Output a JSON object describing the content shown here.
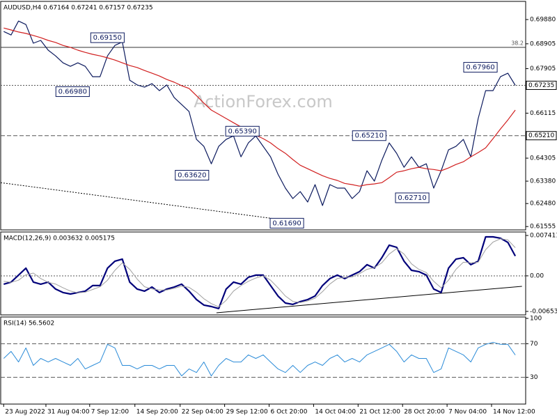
{
  "chart_data": [
    {
      "type": "line",
      "title": "AUDUSD,H4  0.67164 0.67241 0.67157 0.67235",
      "watermark": "ActionForex.com",
      "xlim": [
        -0.4,
        70.4
      ],
      "ylim": [
        0.6142,
        0.7061
      ],
      "yticks": [
        {
          "value": 0.6988,
          "label": "0.69880"
        },
        0.68905,
        0.67905,
        0.66115,
        0.64305,
        {
          "value": 0.6338,
          "label": "0.63380"
        },
        {
          "value": 0.6248,
          "label": "0.62480"
        },
        0.61555
      ],
      "series": [
        {
          "color": "#0c1a5e",
          "width": 1.2,
          "values": [
            0.694,
            0.6926,
            0.6982,
            0.6968,
            0.6893,
            0.6904,
            0.6865,
            0.6842,
            0.6814,
            0.68,
            0.6814,
            0.68,
            0.6758,
            0.6758,
            0.6842,
            0.6884,
            0.6898,
            0.6744,
            0.6725,
            0.6716,
            0.673,
            0.6702,
            0.6725,
            0.6674,
            0.6646,
            0.6618,
            0.6506,
            0.6478,
            0.6408,
            0.6478,
            0.6506,
            0.652,
            0.6436,
            0.6492,
            0.652,
            0.6478,
            0.6436,
            0.6366,
            0.631,
            0.6268,
            0.6296,
            0.6254,
            0.6324,
            0.624,
            0.6324,
            0.631,
            0.631,
            0.6268,
            0.6296,
            0.638,
            0.6338,
            0.6422,
            0.6492,
            0.645,
            0.6394,
            0.6436,
            0.6394,
            0.6408,
            0.631,
            0.638,
            0.6464,
            0.6478,
            0.6506,
            0.6436,
            0.659,
            0.6702,
            0.6702,
            0.6758,
            0.6772,
            0.67235
          ]
        },
        {
          "color": "#d11f1f",
          "width": 1.2,
          "values": [
            0.6954,
            0.6946,
            0.6938,
            0.6932,
            0.6924,
            0.6915,
            0.6904,
            0.6896,
            0.6884,
            0.6876,
            0.6865,
            0.6856,
            0.6848,
            0.6842,
            0.6834,
            0.6825,
            0.6814,
            0.6803,
            0.6795,
            0.6783,
            0.6772,
            0.6761,
            0.6747,
            0.6736,
            0.6722,
            0.6711,
            0.6682,
            0.6652,
            0.6624,
            0.6607,
            0.659,
            0.6573,
            0.6556,
            0.654,
            0.6523,
            0.6509,
            0.6492,
            0.6469,
            0.645,
            0.6425,
            0.6402,
            0.6388,
            0.6374,
            0.636,
            0.6349,
            0.6341,
            0.6329,
            0.6324,
            0.6318,
            0.6324,
            0.6327,
            0.6332,
            0.6352,
            0.6374,
            0.638,
            0.6388,
            0.6394,
            0.6388,
            0.6385,
            0.638,
            0.6391,
            0.6405,
            0.6416,
            0.6436,
            0.6453,
            0.6472,
            0.6509,
            0.6548,
            0.6584,
            0.6624
          ]
        }
      ],
      "hlines": [
        {
          "value": 0.6876,
          "label": "38.2",
          "style": "solid",
          "label_position": "inside"
        },
        {
          "value": 0.67235,
          "label": "0.67235",
          "style": "dotted",
          "label_position": "axis"
        },
        {
          "value": 0.6521,
          "label": "0.65210",
          "style": "dashed",
          "label_position": "axis"
        }
      ],
      "trendline": {
        "x": [
          -0.4,
          38
        ],
        "values": [
          0.6332,
          0.6181
        ],
        "style": "dotted",
        "color": "#000000"
      },
      "annotations": [
        {
          "x": 14,
          "value": 0.6915,
          "label": "0.69150"
        },
        {
          "x": 9.3,
          "value": 0.6698,
          "label": "0.66980"
        },
        {
          "x": 25.4,
          "value": 0.6362,
          "label": "0.63620"
        },
        {
          "x": 32.2,
          "value": 0.6539,
          "label": "0.65390"
        },
        {
          "x": 38.2,
          "value": 0.6169,
          "label": "0.61690"
        },
        {
          "x": 49.3,
          "value": 0.6521,
          "label": "0.65210"
        },
        {
          "x": 55.1,
          "value": 0.6271,
          "label": "0.62710"
        },
        {
          "x": 64.3,
          "value": 0.6796,
          "label": "0.67960"
        }
      ]
    },
    {
      "type": "line",
      "title": "MACD(12,26,9) 0.003632 0.005175",
      "xlim": [
        -0.4,
        70.4
      ],
      "ylim": [
        -0.00717,
        0.00805
      ],
      "yticks": [
        0.007411,
        {
          "value": 0,
          "label": "0.00"
        },
        -0.006532
      ],
      "series": [
        {
          "color": "#00007a",
          "width": 2.2,
          "values": [
            -0.00153,
            -0.00115,
            0.00013,
            0.00141,
            -0.00115,
            -0.00153,
            -0.00115,
            -0.00243,
            -0.00307,
            -0.00333,
            -0.00307,
            -0.00281,
            -0.00179,
            -0.00179,
            0.00141,
            0.00269,
            0.00307,
            -0.00115,
            -0.00243,
            -0.00281,
            -0.00205,
            -0.00307,
            -0.00243,
            -0.00205,
            -0.00153,
            -0.00281,
            -0.00435,
            -0.00537,
            -0.00563,
            -0.00601,
            -0.00243,
            -0.00115,
            -0.00153,
            -0.00026,
            0.00013,
            0.00013,
            -0.00179,
            -0.00371,
            -0.00499,
            -0.00524,
            -0.00473,
            -0.00435,
            -0.00371,
            -0.00179,
            -0.00051,
            0.00013,
            -0.00051,
            0.00013,
            0.00077,
            0.00205,
            0.00141,
            0.00333,
            0.00563,
            0.00524,
            0.00269,
            0.00102,
            0.00077,
            0.00013,
            -0.00243,
            -0.00307,
            0.00141,
            0.00307,
            0.00333,
            0.00205,
            0.00269,
            0.00716,
            0.00716,
            0.00691,
            0.00614,
            0.003632
          ]
        },
        {
          "color": "#a0a0a0",
          "width": 1,
          "values": [
            -0.001,
            -0.0012,
            -0.0008,
            0.0002,
            0.0005,
            -0.0005,
            -0.0012,
            -0.0015,
            -0.0022,
            -0.0028,
            -0.0031,
            -0.003,
            -0.0025,
            -0.002,
            -0.0008,
            0.001,
            0.0024,
            0.0012,
            -0.0006,
            -0.002,
            -0.0024,
            -0.0026,
            -0.0026,
            -0.0023,
            -0.0019,
            -0.0021,
            -0.003,
            -0.0042,
            -0.0051,
            -0.0057,
            -0.0045,
            -0.0028,
            -0.0018,
            -0.001,
            -0.0004,
            0.0,
            -0.0008,
            -0.0022,
            -0.0037,
            -0.0047,
            -0.0049,
            -0.0046,
            -0.0041,
            -0.0029,
            -0.0015,
            -0.0005,
            -0.0003,
            -0.0002,
            0.0004,
            0.0012,
            0.0015,
            0.0024,
            0.004,
            0.005,
            0.004,
            0.0022,
            0.0012,
            0.0006,
            -0.001,
            -0.0022,
            -0.0008,
            0.0012,
            0.0025,
            0.0024,
            0.0025,
            0.0048,
            0.0062,
            0.0068,
            0.0066,
            0.005175
          ]
        }
      ],
      "hlines": [
        {
          "value": 0,
          "style": "dotted"
        }
      ],
      "trendline": {
        "x": [
          28.7,
          69.9
        ],
        "values": [
          -0.00678,
          -0.00192
        ],
        "style": "solid",
        "color": "#000000"
      }
    },
    {
      "type": "line",
      "title": "RSI(14) 56.5602",
      "xlim": [
        -0.4,
        70.4
      ],
      "ylim": [
        -1.7,
        101.7
      ],
      "yticks": [
        100,
        70,
        30
      ],
      "series": [
        {
          "color": "#2a8bd8",
          "width": 1,
          "values": [
            52.5,
            60.8,
            48.3,
            65.0,
            44.2,
            52.5,
            48.3,
            52.5,
            48.3,
            44.2,
            52.5,
            40.0,
            44.2,
            48.3,
            69.2,
            65.0,
            44.2,
            44.2,
            40.0,
            44.2,
            44.2,
            40.0,
            44.2,
            44.2,
            31.7,
            40.0,
            35.8,
            48.3,
            31.7,
            44.2,
            52.5,
            48.3,
            48.3,
            56.7,
            52.5,
            56.7,
            48.3,
            40.0,
            35.8,
            44.2,
            35.8,
            44.2,
            48.3,
            44.2,
            52.5,
            56.7,
            48.3,
            52.5,
            48.3,
            56.7,
            60.8,
            65.0,
            69.2,
            60.8,
            48.3,
            56.7,
            52.5,
            52.5,
            35.8,
            40.0,
            65.0,
            60.8,
            56.7,
            48.3,
            65.0,
            69.2,
            71.7,
            69.2,
            69.2,
            56.5602
          ]
        }
      ],
      "hlines": [
        {
          "value": 70,
          "style": "dashed"
        },
        {
          "value": 30,
          "style": "dashed"
        }
      ],
      "xticks": [
        {
          "value": 0,
          "label": "23 Aug 2022"
        },
        {
          "value": 5.7,
          "label": "31 Aug 04:00"
        },
        {
          "value": 11.6,
          "label": "7 Sep 12:00"
        },
        {
          "value": 17.7,
          "label": "14 Sep 20:00"
        },
        {
          "value": 23.8,
          "label": "22 Sep 04:00"
        },
        {
          "value": 29.8,
          "label": "29 Sep 12:00"
        },
        {
          "value": 35.8,
          "label": "6 Oct 20:00"
        },
        {
          "value": 41.8,
          "label": "14 Oct 04:00"
        },
        {
          "value": 47.8,
          "label": "21 Oct 12:00"
        },
        {
          "value": 53.8,
          "label": "28 Oct 20:00"
        },
        {
          "value": 59.8,
          "label": "7 Nov 04:00"
        },
        {
          "value": 65.8,
          "label": "14 Nov 12:00"
        }
      ]
    }
  ]
}
